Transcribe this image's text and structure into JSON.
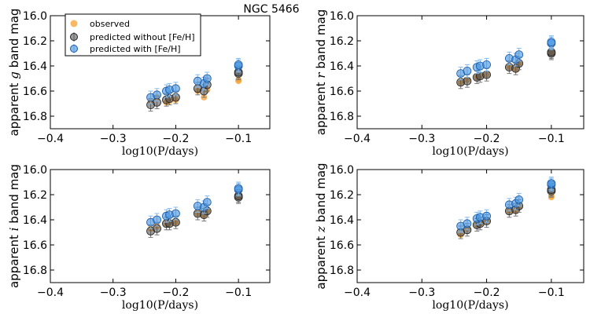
{
  "figure_title": "NGC 5466",
  "colors": {
    "observed": "#f5a033",
    "without": "#4a4a4a",
    "with": "#3d8fe0",
    "with_err": "#7fbcf2",
    "without_err": "#777777"
  },
  "legend": {
    "observed": "observed",
    "without": "predicted without [Fe/H]",
    "with": "predicted with [Fe/H]"
  },
  "chart_data": [
    {
      "type": "scatter",
      "band": "g",
      "ylabel": "apparent g band mag",
      "ylabel_prefix": "apparent ",
      "ylabel_band": "g",
      "ylabel_suffix": " band mag",
      "xlabel": "log10(P/days)",
      "xlim": [
        -0.4,
        -0.05
      ],
      "ylim": [
        16.9,
        16.0
      ],
      "xticks": [
        "−0.4",
        "−0.3",
        "−0.2",
        "−0.1"
      ],
      "xtick_values": [
        -0.4,
        -0.3,
        -0.2,
        -0.1
      ],
      "yticks": [
        "16.0",
        "16.2",
        "16.4",
        "16.6",
        "16.8"
      ],
      "ytick_values": [
        16.0,
        16.2,
        16.4,
        16.6,
        16.8
      ],
      "x": [
        -0.24,
        -0.23,
        -0.215,
        -0.21,
        -0.2,
        -0.165,
        -0.155,
        -0.15,
        -0.1,
        -0.1
      ],
      "series": [
        {
          "name": "observed",
          "values": [
            16.68,
            16.65,
            16.69,
            16.68,
            16.67,
            16.6,
            16.65,
            16.59,
            16.52,
            16.51
          ],
          "err": [
            0.0,
            0.0,
            0.0,
            0.0,
            0.0,
            0.0,
            0.0,
            0.0,
            0.0,
            0.0
          ]
        },
        {
          "name": "predicted without [Fe/H]",
          "values": [
            16.71,
            16.69,
            16.67,
            16.66,
            16.65,
            16.58,
            16.6,
            16.55,
            16.46,
            16.45
          ],
          "err": [
            0.05,
            0.05,
            0.05,
            0.05,
            0.05,
            0.05,
            0.05,
            0.05,
            0.05,
            0.05
          ]
        },
        {
          "name": "predicted with [Fe/H]",
          "values": [
            16.65,
            16.63,
            16.6,
            16.59,
            16.58,
            16.52,
            16.54,
            16.5,
            16.4,
            16.39
          ],
          "err": [
            0.05,
            0.05,
            0.05,
            0.05,
            0.05,
            0.05,
            0.05,
            0.05,
            0.05,
            0.05
          ]
        }
      ]
    },
    {
      "type": "scatter",
      "band": "r",
      "ylabel": "apparent r band mag",
      "ylabel_prefix": "apparent ",
      "ylabel_band": "r",
      "ylabel_suffix": " band mag",
      "xlabel": "log10(P/days)",
      "xlim": [
        -0.4,
        -0.05
      ],
      "ylim": [
        16.9,
        16.0
      ],
      "xticks": [
        "−0.4",
        "−0.3",
        "−0.2",
        "−0.1"
      ],
      "xtick_values": [
        -0.4,
        -0.3,
        -0.2,
        -0.1
      ],
      "yticks": [
        "16.0",
        "16.2",
        "16.4",
        "16.6",
        "16.8"
      ],
      "ytick_values": [
        16.0,
        16.2,
        16.4,
        16.6,
        16.8
      ],
      "x": [
        -0.24,
        -0.23,
        -0.215,
        -0.21,
        -0.2,
        -0.165,
        -0.155,
        -0.15,
        -0.1,
        -0.1
      ],
      "series": [
        {
          "name": "observed",
          "values": [
            16.53,
            16.51,
            16.49,
            16.48,
            16.47,
            16.41,
            16.43,
            16.38,
            16.3,
            16.29
          ],
          "err": [
            0.0,
            0.0,
            0.0,
            0.0,
            0.0,
            0.0,
            0.0,
            0.0,
            0.0,
            0.0
          ]
        },
        {
          "name": "predicted without [Fe/H]",
          "values": [
            16.53,
            16.52,
            16.49,
            16.48,
            16.47,
            16.41,
            16.42,
            16.38,
            16.3,
            16.29
          ],
          "err": [
            0.05,
            0.05,
            0.05,
            0.05,
            0.05,
            0.05,
            0.05,
            0.05,
            0.05,
            0.05
          ]
        },
        {
          "name": "predicted with [Fe/H]",
          "values": [
            16.46,
            16.44,
            16.41,
            16.4,
            16.39,
            16.34,
            16.35,
            16.31,
            16.22,
            16.21
          ],
          "err": [
            0.05,
            0.05,
            0.05,
            0.05,
            0.05,
            0.05,
            0.05,
            0.05,
            0.05,
            0.05
          ]
        }
      ]
    },
    {
      "type": "scatter",
      "band": "i",
      "ylabel": "apparent i band mag",
      "ylabel_prefix": "apparent ",
      "ylabel_band": "i",
      "ylabel_suffix": " band mag",
      "xlabel": "log10(P/days)",
      "xlim": [
        -0.4,
        -0.05
      ],
      "ylim": [
        16.9,
        16.0
      ],
      "xticks": [
        "−0.4",
        "−0.3",
        "−0.2",
        "−0.1"
      ],
      "xtick_values": [
        -0.4,
        -0.3,
        -0.2,
        -0.1
      ],
      "yticks": [
        "16.0",
        "16.2",
        "16.4",
        "16.6",
        "16.8"
      ],
      "ytick_values": [
        16.0,
        16.2,
        16.4,
        16.6,
        16.8
      ],
      "x": [
        -0.24,
        -0.23,
        -0.215,
        -0.21,
        -0.2,
        -0.165,
        -0.155,
        -0.15,
        -0.1,
        -0.1
      ],
      "series": [
        {
          "name": "observed",
          "values": [
            16.47,
            16.45,
            16.43,
            16.43,
            16.42,
            16.35,
            16.37,
            16.33,
            16.22,
            16.21
          ],
          "err": [
            0.0,
            0.0,
            0.0,
            0.0,
            0.0,
            0.0,
            0.0,
            0.0,
            0.0,
            0.0
          ]
        },
        {
          "name": "predicted without [Fe/H]",
          "values": [
            16.49,
            16.47,
            16.43,
            16.43,
            16.42,
            16.35,
            16.36,
            16.33,
            16.22,
            16.21
          ],
          "err": [
            0.05,
            0.05,
            0.05,
            0.05,
            0.05,
            0.05,
            0.05,
            0.05,
            0.05,
            0.05
          ]
        },
        {
          "name": "predicted with [Fe/H]",
          "values": [
            16.42,
            16.4,
            16.37,
            16.36,
            16.35,
            16.29,
            16.3,
            16.26,
            16.16,
            16.15
          ],
          "err": [
            0.05,
            0.05,
            0.05,
            0.05,
            0.05,
            0.05,
            0.05,
            0.05,
            0.05,
            0.05
          ]
        }
      ]
    },
    {
      "type": "scatter",
      "band": "z",
      "ylabel": "apparent z band mag",
      "ylabel_prefix": "apparent ",
      "ylabel_band": "z",
      "ylabel_suffix": " band mag",
      "xlabel": "log10(P/days)",
      "xlim": [
        -0.4,
        -0.05
      ],
      "ylim": [
        16.9,
        16.0
      ],
      "xticks": [
        "−0.4",
        "−0.3",
        "−0.2",
        "−0.1"
      ],
      "xtick_values": [
        -0.4,
        -0.3,
        -0.2,
        -0.1
      ],
      "yticks": [
        "16.0",
        "16.2",
        "16.4",
        "16.6",
        "16.8"
      ],
      "ytick_values": [
        16.0,
        16.2,
        16.4,
        16.6,
        16.8
      ],
      "x": [
        -0.24,
        -0.23,
        -0.215,
        -0.21,
        -0.2,
        -0.165,
        -0.155,
        -0.15,
        -0.1,
        -0.1
      ],
      "series": [
        {
          "name": "observed",
          "values": [
            16.52,
            16.47,
            16.44,
            16.43,
            16.41,
            16.33,
            16.33,
            16.3,
            16.22,
            16.21
          ],
          "err": [
            0.0,
            0.0,
            0.0,
            0.0,
            0.0,
            0.0,
            0.0,
            0.0,
            0.0,
            0.0
          ]
        },
        {
          "name": "predicted without [Fe/H]",
          "values": [
            16.5,
            16.48,
            16.44,
            16.43,
            16.41,
            16.33,
            16.32,
            16.29,
            16.17,
            16.16
          ],
          "err": [
            0.05,
            0.05,
            0.05,
            0.05,
            0.05,
            0.05,
            0.05,
            0.05,
            0.05,
            0.05
          ]
        },
        {
          "name": "predicted with [Fe/H]",
          "values": [
            16.45,
            16.43,
            16.39,
            16.38,
            16.37,
            16.28,
            16.27,
            16.24,
            16.12,
            16.11
          ],
          "err": [
            0.05,
            0.05,
            0.05,
            0.05,
            0.05,
            0.05,
            0.05,
            0.05,
            0.05,
            0.05
          ]
        }
      ]
    }
  ]
}
